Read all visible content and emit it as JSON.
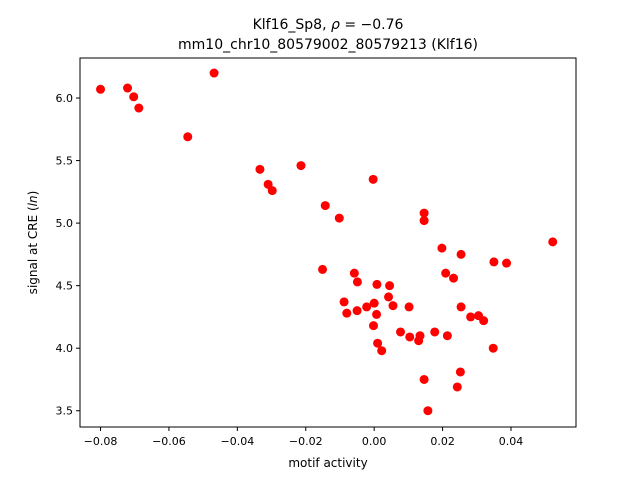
{
  "chart_data": {
    "type": "scatter",
    "title": {
      "line1_prefix": "Klf16_Sp8, ",
      "line1_rho": "ρ",
      "line1_suffix": " = −0.76",
      "line2": "mm10_chr10_80579002_80579213 (Klf16)"
    },
    "xlabel": "motif activity",
    "ylabel_prefix": "signal at CRE (",
    "ylabel_italic": "ln",
    "ylabel_suffix": ")",
    "xlim": [
      -0.086,
      0.059
    ],
    "ylim": [
      3.37,
      6.32
    ],
    "xticks": [
      {
        "value": -0.08,
        "label": "−0.08"
      },
      {
        "value": -0.06,
        "label": "−0.06"
      },
      {
        "value": -0.04,
        "label": "−0.04"
      },
      {
        "value": -0.02,
        "label": "−0.02"
      },
      {
        "value": 0.0,
        "label": "0.00"
      },
      {
        "value": 0.02,
        "label": "0.02"
      },
      {
        "value": 0.04,
        "label": "0.04"
      }
    ],
    "yticks": [
      {
        "value": 3.5,
        "label": "3.5"
      },
      {
        "value": 4.0,
        "label": "4.0"
      },
      {
        "value": 4.5,
        "label": "4.5"
      },
      {
        "value": 5.0,
        "label": "5.0"
      },
      {
        "value": 5.5,
        "label": "5.5"
      },
      {
        "value": 6.0,
        "label": "6.0"
      }
    ],
    "grid": false,
    "marker_color": "#ff0000",
    "points": [
      {
        "x": -0.08,
        "y": 6.07
      },
      {
        "x": -0.0721,
        "y": 6.08
      },
      {
        "x": -0.0703,
        "y": 6.01
      },
      {
        "x": -0.0688,
        "y": 5.92
      },
      {
        "x": -0.0468,
        "y": 6.2
      },
      {
        "x": -0.0545,
        "y": 5.69
      },
      {
        "x": -0.0334,
        "y": 5.43
      },
      {
        "x": -0.031,
        "y": 5.31
      },
      {
        "x": -0.0298,
        "y": 5.26
      },
      {
        "x": -0.0214,
        "y": 5.46
      },
      {
        "x": -0.0003,
        "y": 5.35
      },
      {
        "x": -0.0143,
        "y": 5.14
      },
      {
        "x": -0.0102,
        "y": 5.04
      },
      {
        "x": -0.0151,
        "y": 4.63
      },
      {
        "x": -0.0058,
        "y": 4.6
      },
      {
        "x": -0.0049,
        "y": 4.53
      },
      {
        "x": 0.0008,
        "y": 4.51
      },
      {
        "x": 0.0045,
        "y": 4.5
      },
      {
        "x": 0.0042,
        "y": 4.41
      },
      {
        "x": -0.0088,
        "y": 4.37
      },
      {
        "x": -0.008,
        "y": 4.28
      },
      {
        "x": -0.005,
        "y": 4.3
      },
      {
        "x": -0.0022,
        "y": 4.33
      },
      {
        "x": 0.0,
        "y": 4.36
      },
      {
        "x": 0.0055,
        "y": 4.34
      },
      {
        "x": 0.0007,
        "y": 4.27
      },
      {
        "x": -0.0002,
        "y": 4.18
      },
      {
        "x": 0.0102,
        "y": 4.33
      },
      {
        "x": 0.0077,
        "y": 4.13
      },
      {
        "x": 0.001,
        "y": 4.04
      },
      {
        "x": 0.0022,
        "y": 3.98
      },
      {
        "x": 0.0104,
        "y": 4.09
      },
      {
        "x": 0.013,
        "y": 4.06
      },
      {
        "x": 0.0134,
        "y": 4.1
      },
      {
        "x": 0.0146,
        "y": 5.08
      },
      {
        "x": 0.0146,
        "y": 5.02
      },
      {
        "x": 0.0198,
        "y": 4.8
      },
      {
        "x": 0.0254,
        "y": 4.75
      },
      {
        "x": 0.0209,
        "y": 4.6
      },
      {
        "x": 0.0232,
        "y": 4.56
      },
      {
        "x": 0.0177,
        "y": 4.13
      },
      {
        "x": 0.0214,
        "y": 4.1
      },
      {
        "x": 0.0254,
        "y": 4.33
      },
      {
        "x": 0.0282,
        "y": 4.25
      },
      {
        "x": 0.0305,
        "y": 4.26
      },
      {
        "x": 0.032,
        "y": 4.22
      },
      {
        "x": 0.035,
        "y": 4.69
      },
      {
        "x": 0.0387,
        "y": 4.68
      },
      {
        "x": 0.0522,
        "y": 4.85
      },
      {
        "x": 0.0348,
        "y": 4.0
      },
      {
        "x": 0.0146,
        "y": 3.75
      },
      {
        "x": 0.0252,
        "y": 3.81
      },
      {
        "x": 0.0243,
        "y": 3.69
      },
      {
        "x": 0.0157,
        "y": 3.5
      }
    ]
  }
}
